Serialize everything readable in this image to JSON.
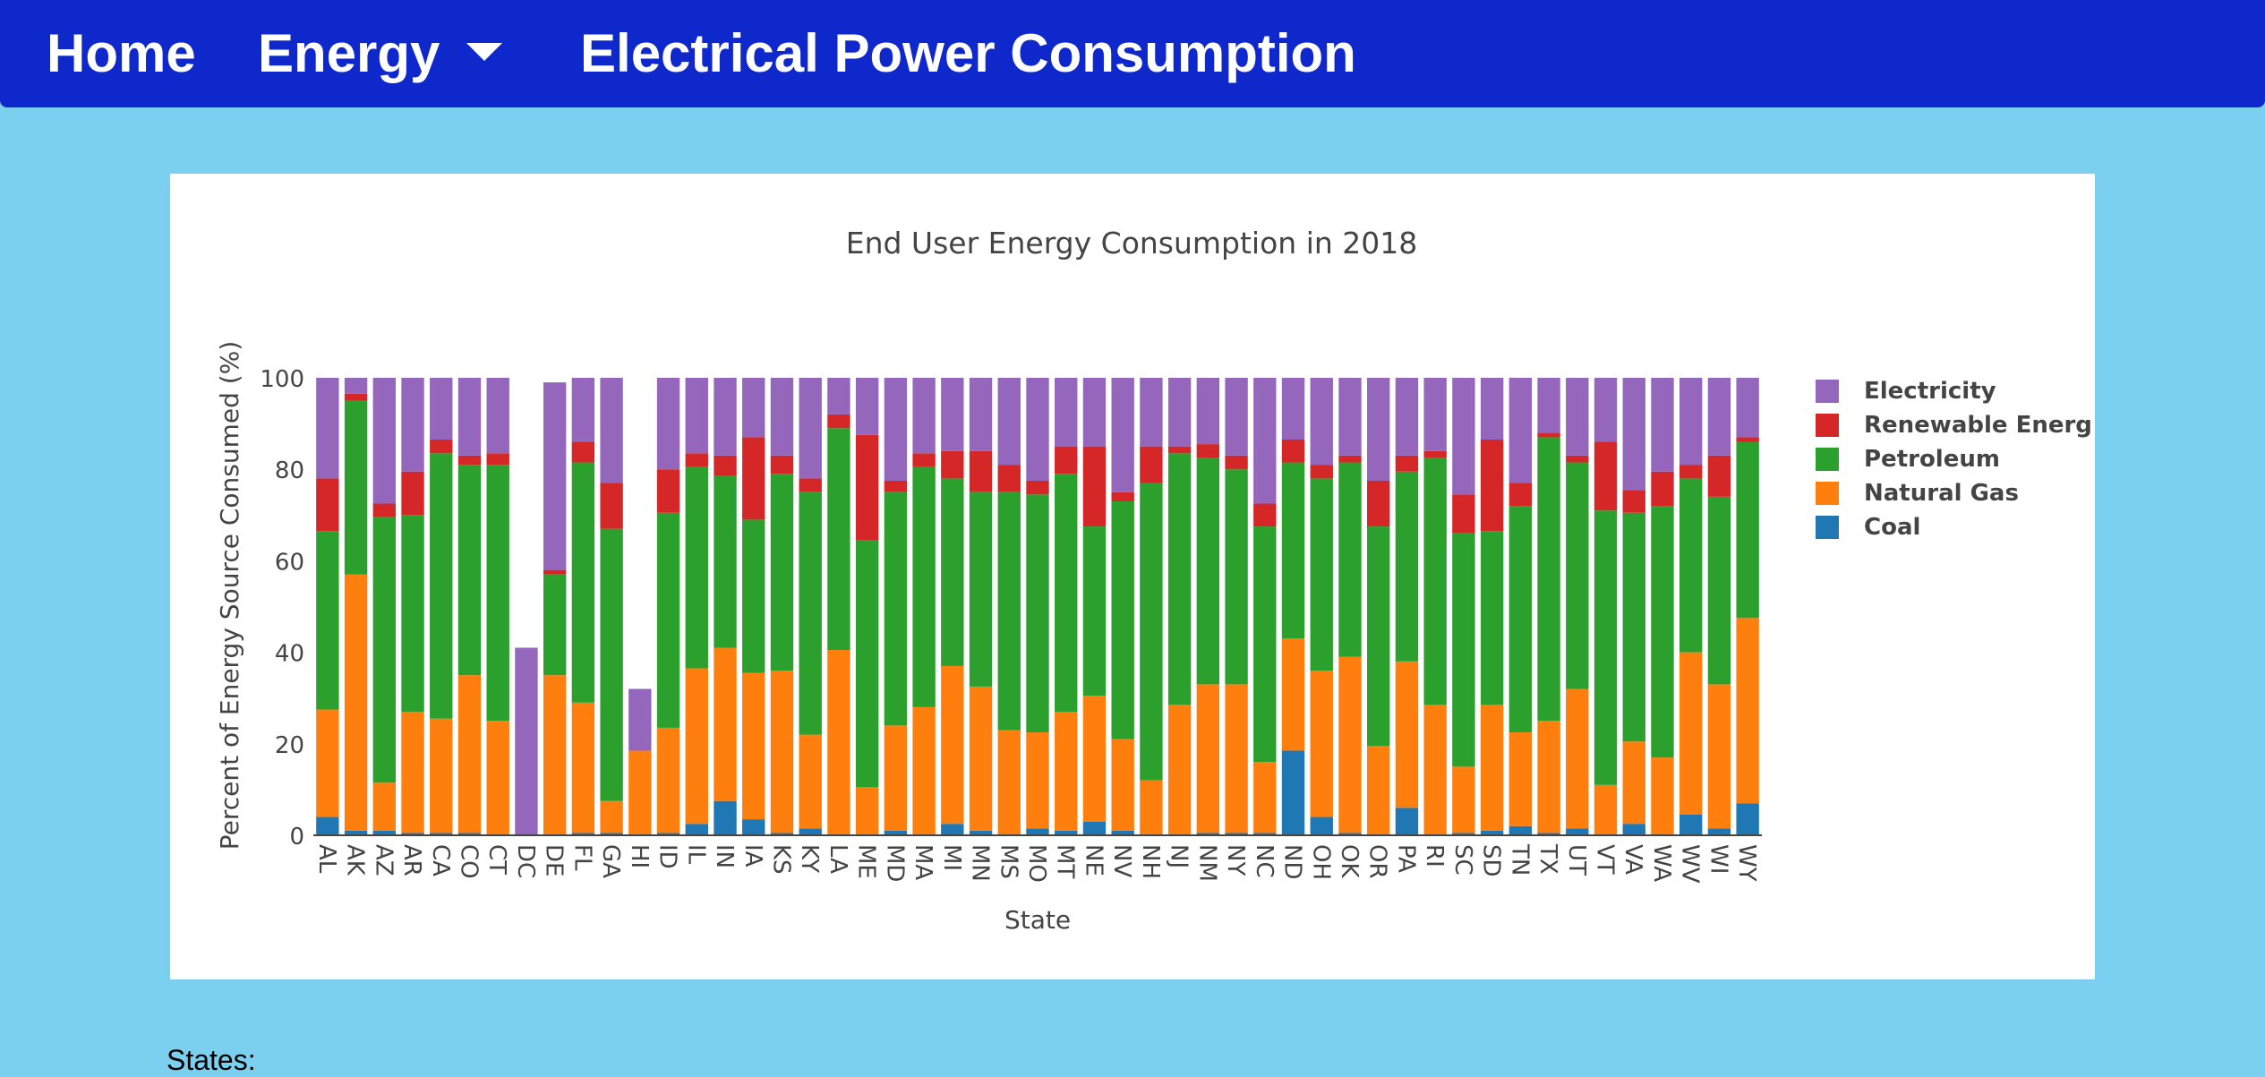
{
  "nav": {
    "home_label": "Home",
    "energy_label": "Energy",
    "title": "Electrical Power Consumption"
  },
  "states_label": "States:",
  "chart_data": {
    "type": "bar",
    "stacked": true,
    "title": "End User Energy Consumption in 2018",
    "xlabel": "State",
    "ylabel": "Percent of Energy Source Consumed (%)",
    "ylim": [
      0,
      100
    ],
    "yticks": [
      0,
      20,
      40,
      60,
      80,
      100
    ],
    "grid": false,
    "legend_position": "right",
    "categories": [
      "AL",
      "AK",
      "AZ",
      "AR",
      "CA",
      "CO",
      "CT",
      "DC",
      "DE",
      "FL",
      "GA",
      "HI",
      "ID",
      "IL",
      "IN",
      "IA",
      "KS",
      "KY",
      "LA",
      "ME",
      "MD",
      "MA",
      "MI",
      "MN",
      "MS",
      "MO",
      "MT",
      "NE",
      "NV",
      "NH",
      "NJ",
      "NM",
      "NY",
      "NC",
      "ND",
      "OH",
      "OK",
      "OR",
      "PA",
      "RI",
      "SC",
      "SD",
      "TN",
      "TX",
      "UT",
      "VT",
      "VA",
      "WA",
      "WV",
      "WI",
      "WY"
    ],
    "series": [
      {
        "name": "Coal",
        "color": "#1f77b4",
        "values": [
          4,
          1,
          1,
          0.5,
          0.5,
          0.5,
          0,
          0,
          0,
          0.5,
          0.5,
          0,
          0.5,
          2.5,
          7.5,
          3.5,
          0.5,
          1.5,
          0,
          0,
          1,
          0,
          2.5,
          1,
          0,
          1.5,
          1,
          3,
          1,
          0,
          0,
          0.5,
          0.5,
          0.5,
          18.5,
          4,
          0.5,
          0,
          6,
          0,
          0.5,
          1,
          2,
          0.5,
          1.5,
          0,
          2.5,
          0,
          4.5,
          1.5,
          7
        ]
      },
      {
        "name": "Natural Gas",
        "color": "#ff7f0e",
        "values": [
          23.5,
          56,
          10.5,
          26.5,
          25,
          34.5,
          25,
          0,
          35,
          28.5,
          7,
          18.5,
          23,
          34,
          33.5,
          32,
          35.5,
          20.5,
          40.5,
          10.5,
          23,
          28,
          34.5,
          31.5,
          23,
          21,
          26,
          27.5,
          20,
          12,
          28.5,
          32.5,
          32.5,
          15.5,
          24.5,
          32,
          38.5,
          19.5,
          32,
          28.5,
          14.5,
          27.5,
          20.5,
          24.5,
          30.5,
          11,
          18,
          17,
          35.5,
          31.5,
          40.5
        ]
      },
      {
        "name": "Petroleum",
        "color": "#2ca02c",
        "values": [
          39,
          38,
          58,
          43,
          58,
          46,
          56,
          0,
          22,
          52.5,
          59.5,
          0,
          47,
          44,
          37.5,
          33.5,
          43,
          53,
          48.5,
          54,
          51,
          52.5,
          41,
          42.5,
          52,
          52,
          52,
          37,
          52,
          65,
          55,
          49.5,
          47,
          51.5,
          38.5,
          42,
          42.5,
          48,
          41.5,
          54,
          51,
          38,
          49.5,
          62,
          49.5,
          60,
          50,
          55,
          38,
          41,
          38.5
        ]
      },
      {
        "name": "Renewable Energ",
        "color": "#d62728",
        "values": [
          11.5,
          1.5,
          3,
          9.5,
          3,
          2,
          2.5,
          0,
          1,
          4.5,
          10,
          0,
          9.5,
          3,
          4.5,
          18,
          4,
          3,
          3,
          23,
          2.5,
          3,
          6,
          9,
          6,
          3,
          6,
          17.5,
          2,
          8,
          1.5,
          3,
          3,
          5,
          5,
          3,
          1.5,
          10,
          3.5,
          1.5,
          8.5,
          20,
          5,
          1,
          1.5,
          15,
          5,
          7.5,
          3,
          9,
          1
        ]
      },
      {
        "name": "Electricity",
        "color": "#9467bd",
        "values": [
          22,
          3.5,
          27.5,
          20.5,
          13.5,
          17,
          16.5,
          41,
          41,
          14,
          23,
          13.5,
          20,
          16.5,
          17,
          13,
          17,
          22,
          8,
          12.5,
          22.5,
          16.5,
          16,
          16,
          19,
          22.5,
          15,
          15,
          25,
          15,
          15,
          14.5,
          17,
          27.5,
          13.5,
          19,
          17,
          22.5,
          17,
          16,
          25.5,
          13.5,
          23,
          12,
          17,
          14,
          24.5,
          20.5,
          19,
          17,
          13
        ]
      }
    ]
  }
}
